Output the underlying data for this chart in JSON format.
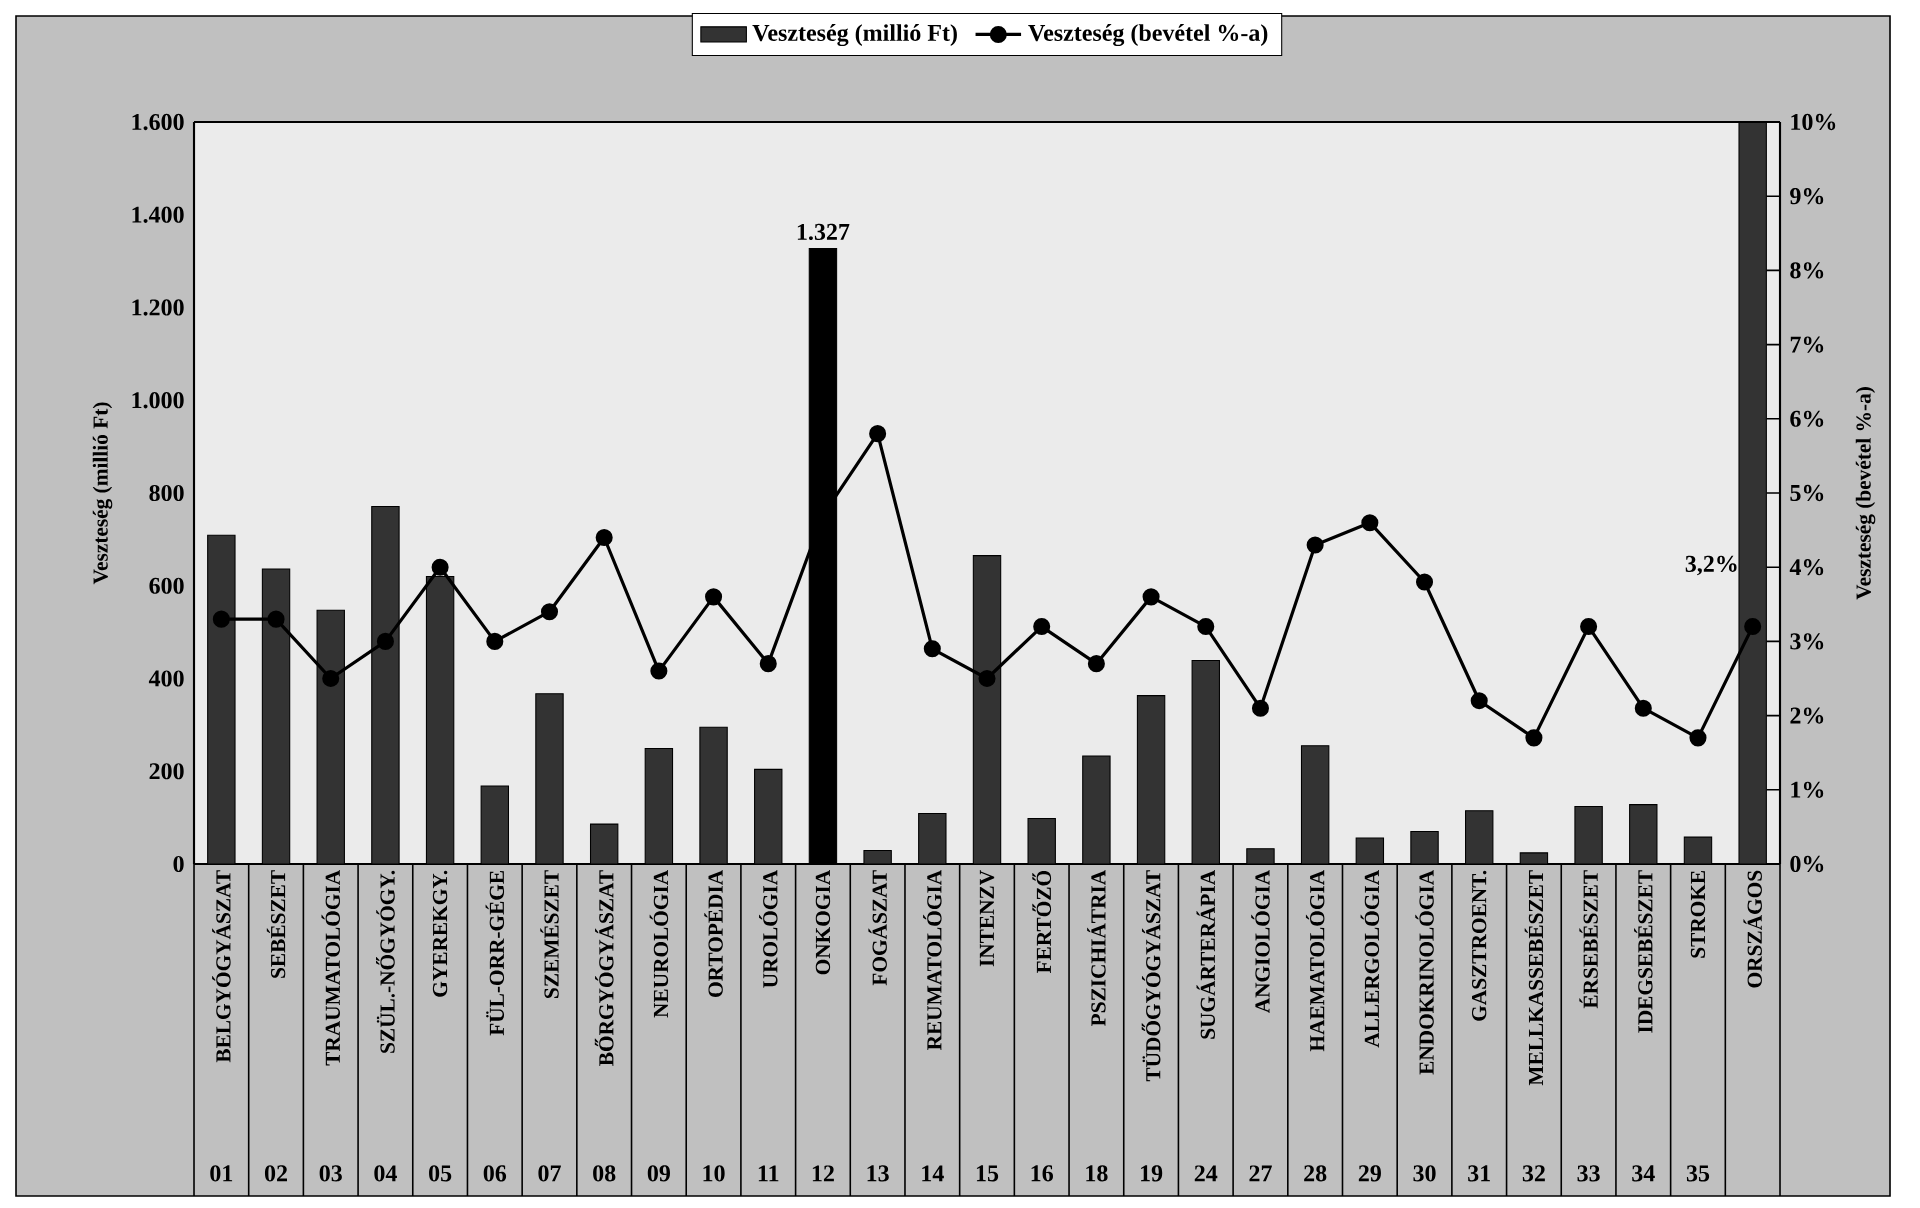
{
  "chart_data": {
    "type": "bar",
    "categories": [
      "BELGYÓGYÁSZAT",
      "SEBÉSZET",
      "TRAUMATOLÓGIA",
      "SZÜL.-NŐGYÓGY.",
      "GYEREKGY.",
      "FÜL-ORR-GÉGE",
      "SZEMÉSZET",
      "BŐRGYÓGYÁSZAT",
      "NEUROLÓGIA",
      "ORTOPÉDIA",
      "UROLÓGIA",
      "ONKOGIA",
      "FOGÁSZAT",
      "REUMATOLÓGIA",
      "INTENZV",
      "FERTŐZŐ",
      "PSZICHIÁTRIA",
      "TÜDŐGYÓGYÁSZAT",
      "SUGÁRTERÁPIA",
      "ANGIOLÓGIA",
      "HAEMATOLÓGIA",
      "ALLERGOLÓGIA",
      "ENDOKRINOLÓGIA",
      "GASZTROENT.",
      "MELLKASSEBÉSZET",
      "ÉRSEBÉSZET",
      "IDEGSEBÉSZET",
      "STROKE",
      "ORSZÁGOS"
    ],
    "series": [
      {
        "name": "Veszteség (millió Ft)",
        "color": "#333333",
        "colors": [
          "#333333",
          "#333333",
          "#333333",
          "#333333",
          "#333333",
          "#333333",
          "#333333",
          "#333333",
          "#333333",
          "#333333",
          "#333333",
          "#000000",
          "#333333",
          "#333333",
          "#333333",
          "#333333",
          "#333333",
          "#333333",
          "#333333",
          "#333333",
          "#333333",
          "#333333",
          "#333333",
          "#333333",
          "#333333",
          "#333333",
          "#333333",
          "#333333",
          "#333333"
        ],
        "values": [
          709,
          636,
          547,
          771,
          620,
          168,
          367,
          86,
          249,
          295,
          204,
          1327,
          29,
          109,
          665,
          98,
          233,
          363,
          439,
          33,
          255,
          56,
          70,
          115,
          24,
          124,
          128,
          58,
          1600
        ],
        "value_labels": [
          null,
          null,
          null,
          null,
          null,
          null,
          null,
          null,
          null,
          null,
          null,
          "1.327",
          null,
          null,
          null,
          null,
          null,
          null,
          null,
          null,
          null,
          null,
          null,
          null,
          null,
          null,
          null,
          null,
          null
        ]
      },
      {
        "name": "Veszteség (bevétel %-a)",
        "type": "line",
        "axis": "y2",
        "color": "#000000",
        "values": [
          3.3,
          3.3,
          2.5,
          3.0,
          4.0,
          3.0,
          3.4,
          4.4,
          2.6,
          3.6,
          2.7,
          4.7,
          5.8,
          2.9,
          2.5,
          3.2,
          2.7,
          3.6,
          3.2,
          2.1,
          4.3,
          4.6,
          3.8,
          2.2,
          1.7,
          3.2,
          2.1,
          1.7,
          3.2
        ],
        "value_labels": [
          null,
          null,
          null,
          null,
          null,
          null,
          null,
          null,
          null,
          null,
          null,
          null,
          null,
          null,
          null,
          null,
          null,
          null,
          null,
          null,
          null,
          null,
          null,
          null,
          null,
          null,
          null,
          null,
          "3,2%"
        ]
      }
    ],
    "ylabel": "Veszteség (millió Ft)",
    "y2label": "Veszteség (bevétel %-a)",
    "ylim": [
      0,
      1600
    ],
    "yticks": [
      0,
      200,
      400,
      600,
      800,
      {
        "value": 1000,
        "label": "1.000"
      },
      {
        "value": 1200,
        "label": "1.200"
      },
      {
        "value": 1400,
        "label": "1.400"
      },
      {
        "value": 1600,
        "label": "1.600"
      }
    ],
    "y2lim": [
      0,
      10
    ],
    "y2ticks": [
      {
        "value": 0,
        "label": "0%"
      },
      {
        "value": 1,
        "label": "1%"
      },
      {
        "value": 2,
        "label": "2%"
      },
      {
        "value": 3,
        "label": "3%"
      },
      {
        "value": 4,
        "label": "4%"
      },
      {
        "value": 5,
        "label": "5%"
      },
      {
        "value": 6,
        "label": "6%"
      },
      {
        "value": 7,
        "label": "7%"
      },
      {
        "value": 8,
        "label": "8%"
      },
      {
        "value": 9,
        "label": "9%"
      },
      {
        "value": 10,
        "label": "10%"
      }
    ],
    "annotations": [
      "01",
      "02",
      "03",
      "04",
      "05",
      "06",
      "07",
      "08",
      "09",
      "10",
      "11",
      "12",
      "13",
      "14",
      "15",
      "16",
      "18",
      "19",
      "24",
      "27",
      "28",
      "29",
      "30",
      "31",
      "32",
      "33",
      "34",
      "35"
    ],
    "legend": "top",
    "marker": "circle",
    "line_style": "solid"
  }
}
